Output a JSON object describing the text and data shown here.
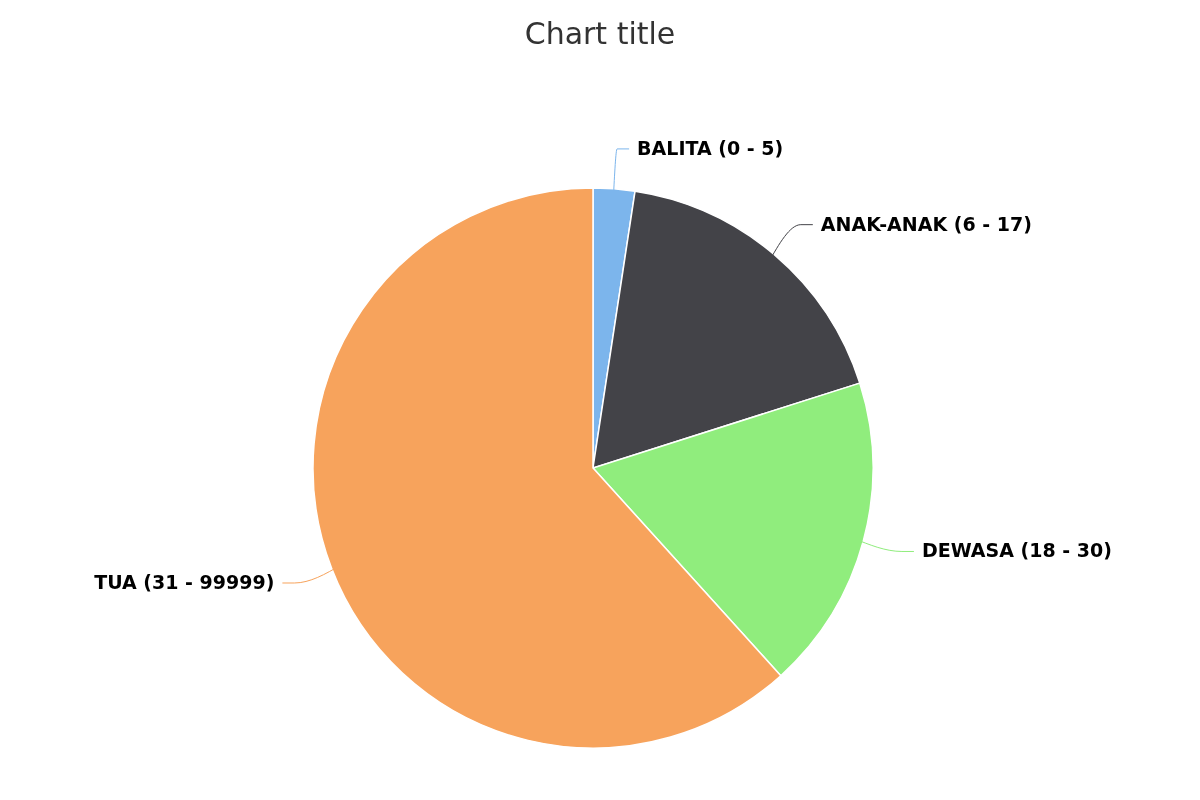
{
  "chart_data": {
    "type": "pie",
    "title": "Chart title",
    "categories": [
      "BALITA (0 - 5)",
      "ANAK-ANAK (6 - 17)",
      "DEWASA (18 - 30)",
      "TUA (31 - 99999)"
    ],
    "values": [
      2.4,
      17.7,
      18.2,
      61.7
    ],
    "colors": [
      "#7cb5ec",
      "#434348",
      "#90ed7d",
      "#f7a35c"
    ]
  }
}
